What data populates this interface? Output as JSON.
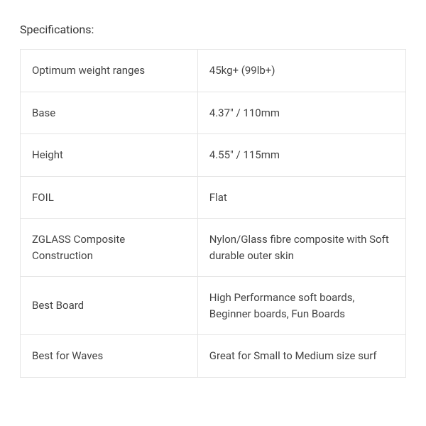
{
  "title": "Specifications:",
  "table": {
    "type": "table",
    "border_color": "#e5e5e5",
    "background_color": "#ffffff",
    "text_color": "#444444",
    "font_size": 15,
    "cell_padding": 18,
    "rows": [
      {
        "label": "Optimum weight ranges",
        "value": "45kg+ (99lb+)"
      },
      {
        "label": "Base",
        "value": "4.37\" / 110mm"
      },
      {
        "label": "Height",
        "value": "4.55\" / 115mm"
      },
      {
        "label": "FOIL",
        "value": "Flat"
      },
      {
        "label": "ZGLASS Composite Construction",
        "value": "Nylon/Glass fibre composite with Soft durable outer skin"
      },
      {
        "label": "Best Board",
        "value": "High Performance soft boards, Beginner boards, Fun Boards"
      },
      {
        "label": "Best for Waves",
        "value": "Great for Small to Medium size surf"
      }
    ]
  }
}
